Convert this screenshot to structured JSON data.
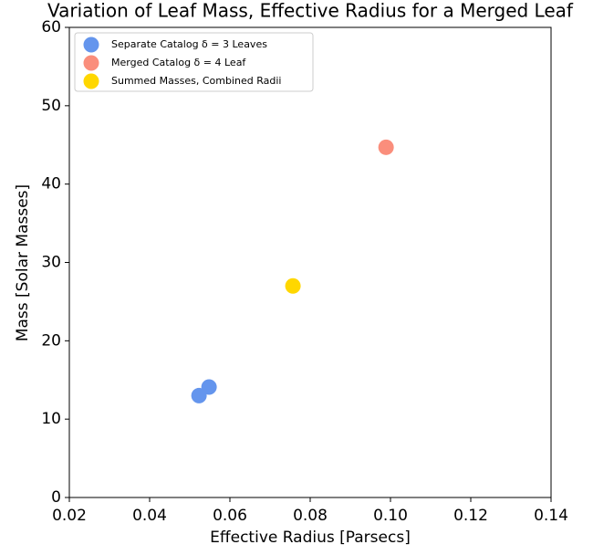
{
  "chart_data": {
    "type": "scatter",
    "title": "Variation of Leaf Mass, Effective Radius for a Merged Leaf",
    "xlabel": "Effective Radius [Parsecs]",
    "ylabel": "Mass [Solar Masses]",
    "xlim": [
      0.02,
      0.14
    ],
    "ylim": [
      0,
      60
    ],
    "xticks": [
      0.02,
      0.04,
      0.06,
      0.08,
      {
        "value": 0.1,
        "label": "0.10"
      },
      0.12,
      0.14
    ],
    "yticks": [
      0,
      10,
      20,
      30,
      40,
      50,
      60
    ],
    "legend": "upper left",
    "series": [
      {
        "name": "Separate Catalog δ = 3 Leaves",
        "color": "#6495ed",
        "x": [
          0.0523,
          0.0548
        ],
        "values": [
          13.0,
          14.1
        ]
      },
      {
        "name": "Merged Catalog δ = 4 Leaf",
        "color": "#fa8e7c",
        "x": [
          0.0989
        ],
        "values": [
          44.7
        ]
      },
      {
        "name": "Summed Masses, Combined Radii",
        "color": "#ffd700",
        "x": [
          0.0757
        ],
        "values": [
          27.0
        ]
      }
    ]
  }
}
